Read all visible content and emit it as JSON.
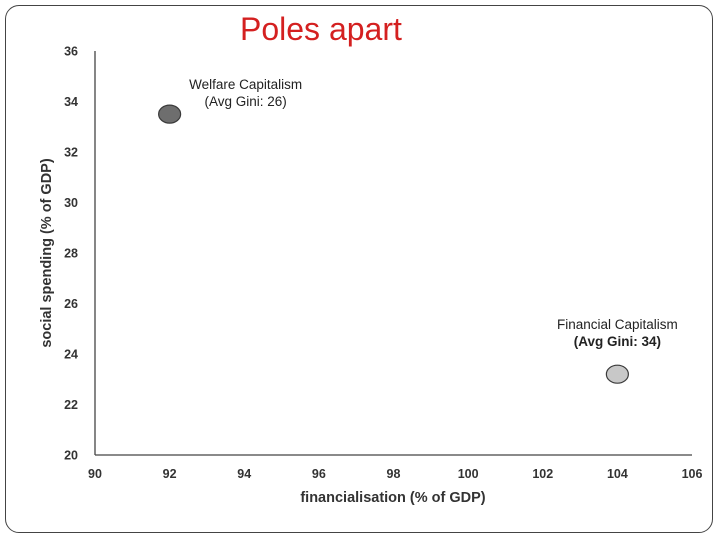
{
  "slide": {
    "title": "Poles apart"
  },
  "chart_data": {
    "type": "scatter",
    "title": "",
    "xlabel": "financialisation (% of GDP)",
    "ylabel": "social spending (% of GDP)",
    "xlim": [
      90,
      106
    ],
    "ylim": [
      20,
      36
    ],
    "xticks": [
      90,
      92,
      94,
      96,
      98,
      100,
      102,
      104,
      106
    ],
    "yticks": [
      20,
      22,
      24,
      26,
      28,
      30,
      32,
      34,
      36
    ],
    "grid": false,
    "legend": "none",
    "points": [
      {
        "x": 92,
        "y": 33.5,
        "label_line1": "Welfare Capitalism",
        "label_line2": "(Avg Gini: 26)",
        "color": "#6e6e6e"
      },
      {
        "x": 104,
        "y": 23.2,
        "label_line1": "Financial Capitalism",
        "label_line2": "(Avg Gini: 34)",
        "color": "#c8c8c8"
      }
    ]
  }
}
